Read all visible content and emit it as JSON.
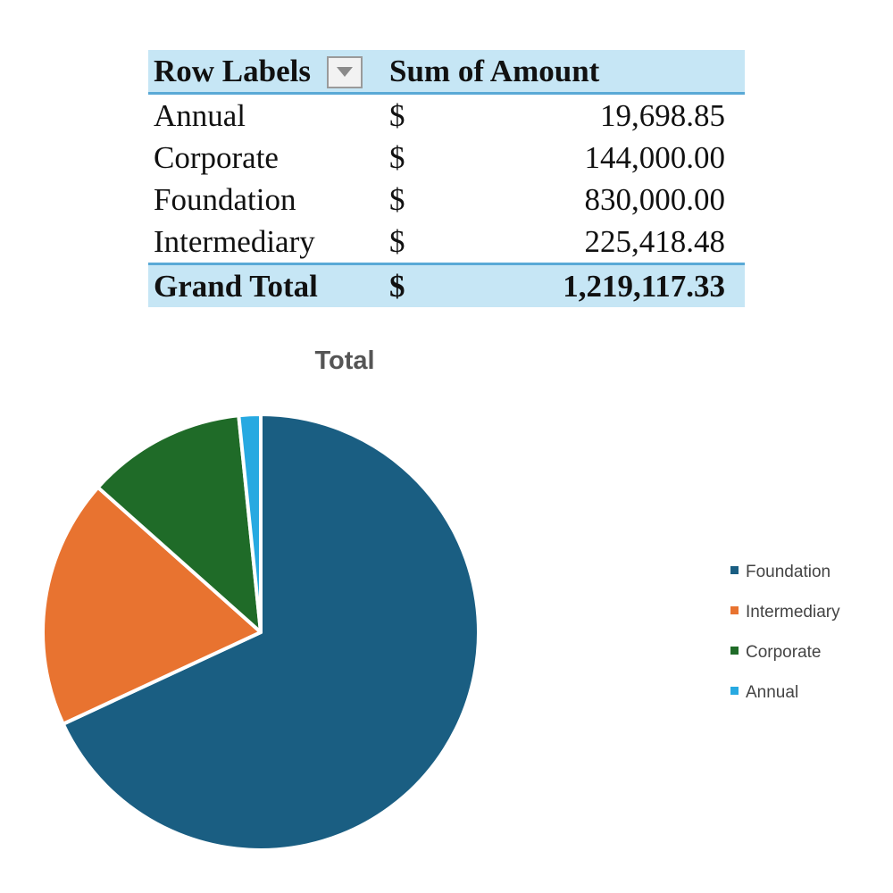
{
  "pivot_table": {
    "header": {
      "row_labels": "Row Labels",
      "value_label": "Sum of Amount"
    },
    "rows": [
      {
        "label": "Annual",
        "currency": "$",
        "amount": "19,698.85"
      },
      {
        "label": "Corporate",
        "currency": "$",
        "amount": "144,000.00"
      },
      {
        "label": "Foundation",
        "currency": "$",
        "amount": "830,000.00"
      },
      {
        "label": "Intermediary",
        "currency": "$",
        "amount": "225,418.48"
      }
    ],
    "total": {
      "label": "Grand Total",
      "currency": "$",
      "amount": "1,219,117.33"
    }
  },
  "chart_data": {
    "type": "pie",
    "title": "Total",
    "categories": [
      "Foundation",
      "Intermediary",
      "Corporate",
      "Annual"
    ],
    "values": [
      830000.0,
      225418.48,
      144000.0,
      19698.85
    ],
    "colors": [
      "#1a5e82",
      "#e87330",
      "#1f6b28",
      "#27a9e1"
    ],
    "legend_position": "right"
  },
  "icons": {
    "filter_dropdown": "dropdown-arrow-icon"
  }
}
